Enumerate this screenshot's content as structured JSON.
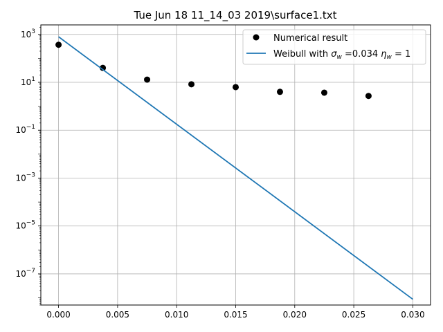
{
  "chart_data": {
    "type": "scatter",
    "title": "Tue Jun 18 11_14_03 2019\\surface1.txt",
    "xlabel": "",
    "ylabel": "",
    "xlim": [
      -0.0015,
      0.0315
    ],
    "ylim": [
      5e-09,
      2500
    ],
    "yscale": "log",
    "grid": true,
    "legend_position": "top-right",
    "x_ticks": [
      0.0,
      0.005,
      0.01,
      0.015,
      0.02,
      0.025,
      0.03
    ],
    "x_tick_labels": [
      "0.000",
      "0.005",
      "0.010",
      "0.015",
      "0.020",
      "0.025",
      "0.030"
    ],
    "y_ticks": [
      {
        "value": 1000,
        "base": "10",
        "exp": "3"
      },
      {
        "value": 10,
        "base": "10",
        "exp": "1"
      },
      {
        "value": 0.1,
        "base": "10",
        "exp": "−1"
      },
      {
        "value": 0.001,
        "base": "10",
        "exp": "−3"
      },
      {
        "value": 1e-05,
        "base": "10",
        "exp": "−5"
      },
      {
        "value": 1e-07,
        "base": "10",
        "exp": "−7"
      }
    ],
    "series": [
      {
        "name": "Numerical result",
        "kind": "errorbar",
        "color": "#000000",
        "x": [
          0.0,
          0.00375,
          0.0075,
          0.01125,
          0.015,
          0.01875,
          0.0225,
          0.02625
        ],
        "y": [
          370,
          40,
          13,
          8.3,
          6.3,
          4.0,
          3.7,
          2.7
        ],
        "y_err_low": [
          25,
          3,
          1.2,
          0.8,
          0.8,
          1.0,
          0.9,
          0.5
        ],
        "y_err_high": [
          25,
          3,
          1.2,
          0.8,
          0.8,
          1.4,
          1.1,
          0.5
        ]
      },
      {
        "name": "Weibull with σw =0.034 ηw = 1",
        "legend_parts": {
          "prefix": "Weibull with ",
          "sigma": "σ",
          "sigma_sub": "w",
          "middle": " =0.034 ",
          "eta": "η",
          "eta_sub": "w",
          "suffix": " = 1"
        },
        "kind": "line",
        "color": "#1f77b4",
        "x": [
          0.0,
          0.03
        ],
        "y": [
          800,
          8.7e-09
        ]
      }
    ]
  }
}
